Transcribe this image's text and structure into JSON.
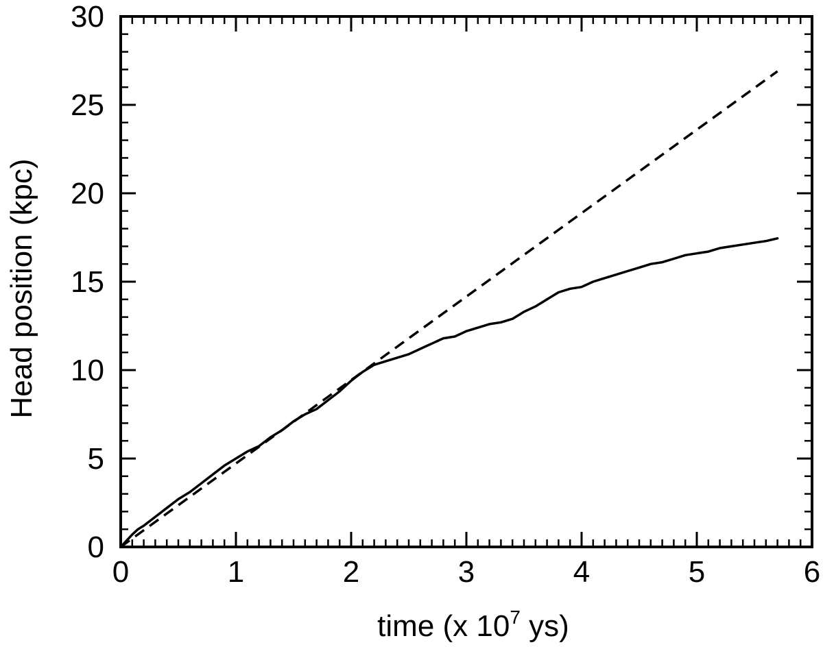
{
  "chart_data": {
    "type": "line",
    "xlabel": "time (x 10",
    "xlabel_sup": "7",
    "xlabel_suffix": " ys)",
    "ylabel": "Head position (kpc)",
    "xlim": [
      0,
      6
    ],
    "ylim": [
      0,
      30
    ],
    "x_major_ticks": [
      "0",
      "1",
      "2",
      "3",
      "4",
      "5",
      "6"
    ],
    "y_major_ticks": [
      "0",
      "5",
      "10",
      "15",
      "20",
      "25",
      "30"
    ],
    "x_minor_step": 0.1,
    "y_minor_step": 1,
    "grid": false,
    "legend": "none",
    "series": [
      {
        "style": "solid",
        "color": "#000000",
        "x": [
          0,
          0.05,
          0.1,
          0.15,
          0.2,
          0.3,
          0.4,
          0.5,
          0.6,
          0.7,
          0.8,
          0.9,
          1.0,
          1.1,
          1.2,
          1.3,
          1.4,
          1.5,
          1.6,
          1.7,
          1.8,
          1.9,
          2.0,
          2.1,
          2.2,
          2.3,
          2.4,
          2.5,
          2.6,
          2.7,
          2.8,
          2.9,
          3.0,
          3.1,
          3.2,
          3.3,
          3.4,
          3.5,
          3.6,
          3.7,
          3.8,
          3.9,
          4.0,
          4.1,
          4.2,
          4.3,
          4.4,
          4.5,
          4.6,
          4.7,
          4.8,
          4.9,
          5.0,
          5.1,
          5.2,
          5.3,
          5.4,
          5.5,
          5.6,
          5.7
        ],
        "y": [
          0,
          0.35,
          0.7,
          1.0,
          1.2,
          1.7,
          2.2,
          2.7,
          3.1,
          3.6,
          4.1,
          4.6,
          5.0,
          5.4,
          5.7,
          6.2,
          6.6,
          7.1,
          7.5,
          7.8,
          8.3,
          8.8,
          9.4,
          9.9,
          10.3,
          10.5,
          10.7,
          10.9,
          11.2,
          11.5,
          11.8,
          11.9,
          12.2,
          12.4,
          12.6,
          12.7,
          12.9,
          13.3,
          13.6,
          14.0,
          14.4,
          14.6,
          14.7,
          15.0,
          15.2,
          15.4,
          15.6,
          15.8,
          16.0,
          16.1,
          16.3,
          16.5,
          16.6,
          16.7,
          16.9,
          17.0,
          17.1,
          17.2,
          17.3,
          17.45
        ]
      },
      {
        "style": "dashed",
        "color": "#000000",
        "x": [
          0,
          5.7
        ],
        "y": [
          0,
          26.9
        ]
      }
    ]
  }
}
